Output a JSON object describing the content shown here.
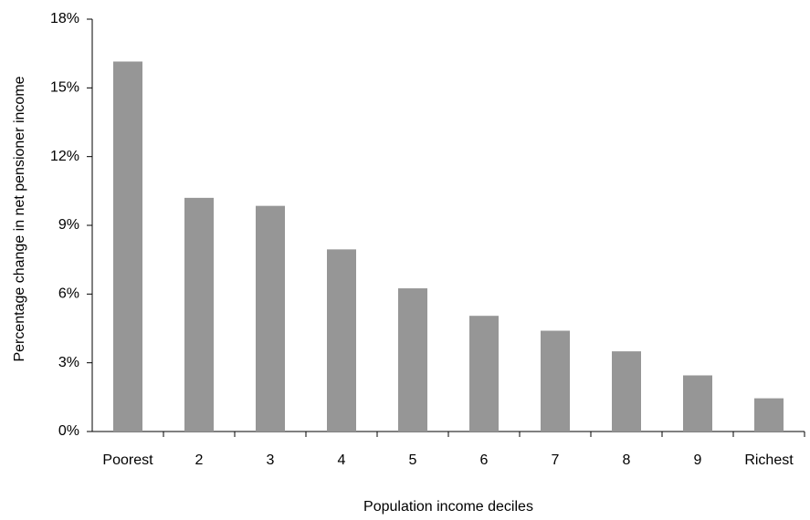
{
  "chart_data": {
    "type": "bar",
    "x_label": "Population income deciles",
    "y_label": "Percentage change in net pensioner income",
    "categories": [
      "Poorest",
      "2",
      "3",
      "4",
      "5",
      "6",
      "7",
      "8",
      "9",
      "Richest"
    ],
    "values": [
      16.15,
      10.2,
      9.85,
      7.95,
      6.25,
      5.05,
      4.4,
      3.5,
      2.45,
      1.45
    ],
    "color": "#969696",
    "ylim": [
      0,
      18
    ],
    "yticks": [
      {
        "value": 0,
        "label": "0%"
      },
      {
        "value": 3,
        "label": "3%"
      },
      {
        "value": 6,
        "label": "6%"
      },
      {
        "value": 9,
        "label": "9%"
      },
      {
        "value": 12,
        "label": "12%"
      },
      {
        "value": 15,
        "label": "15%"
      },
      {
        "value": 18,
        "label": "18%"
      }
    ],
    "grid": false
  }
}
